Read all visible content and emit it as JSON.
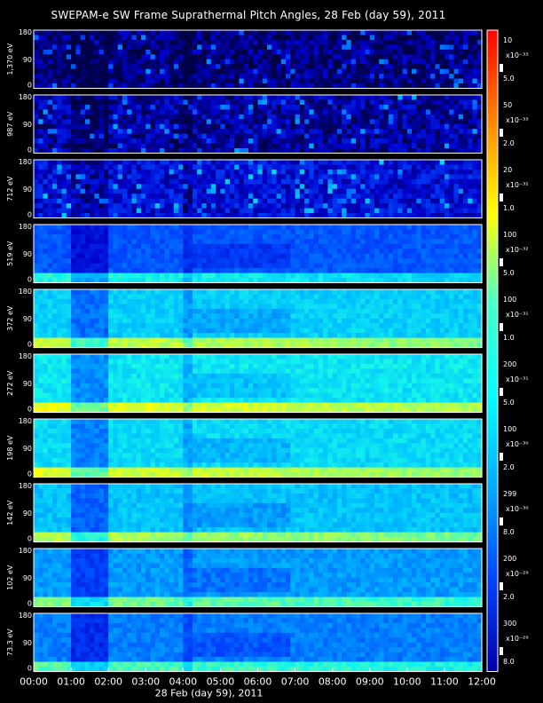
{
  "title": "SWEPAM-e SW Frame Suprathermal Pitch Angles, 28 Feb (day  59), 2011",
  "chart_data": {
    "type": "heatmap",
    "title": "SWEPAM-e SW Frame Suprathermal Pitch Angles, 28 Feb (day  59), 2011",
    "xlabel": "28 Feb (day  59), 2011",
    "x_ticks": [
      "00:00",
      "01:00",
      "02:00",
      "03:00",
      "04:00",
      "05:00",
      "06:00",
      "07:00",
      "08:00",
      "09:00",
      "10:00",
      "11:00",
      "12:00"
    ],
    "y_ticks": [
      "0",
      "90",
      "180"
    ],
    "ylim": [
      0,
      180
    ],
    "colors": {
      "background": "#000000",
      "colorbar": [
        "#ff0000",
        "#ff8800",
        "#ffff00",
        "#44ffcc",
        "#00ffff",
        "#00aaff",
        "#0044ff",
        "#0000aa"
      ]
    },
    "panels": [
      {
        "label": "1,370 eV",
        "level": 0.05,
        "cb_labels": [
          "10",
          "x10⁻³³",
          "5.0"
        ]
      },
      {
        "label": "987 eV",
        "level": 0.09,
        "cb_labels": [
          "50",
          "x10⁻³³",
          "2.0"
        ]
      },
      {
        "label": "712 eV",
        "level": 0.16,
        "cb_labels": [
          "20",
          "x10⁻³²",
          "1.0"
        ]
      },
      {
        "label": "519 eV",
        "level": 0.3,
        "cb_labels": [
          "100",
          "x10⁻³²",
          "5.0"
        ]
      },
      {
        "label": "372 eV",
        "level": 0.48,
        "cb_labels": [
          "100",
          "x10⁻³¹",
          "1.0"
        ]
      },
      {
        "label": "272 eV",
        "level": 0.52,
        "cb_labels": [
          "200",
          "x10⁻³¹",
          "5.0"
        ]
      },
      {
        "label": "198 eV",
        "level": 0.5,
        "cb_labels": [
          "100",
          "x10⁻³⁰",
          "2.0"
        ]
      },
      {
        "label": "142 eV",
        "level": 0.46,
        "cb_labels": [
          "299",
          "x10⁻³⁰",
          "8.0"
        ]
      },
      {
        "label": "102 eV",
        "level": 0.4,
        "cb_labels": [
          "200",
          "x10⁻²⁹",
          "2.0"
        ]
      },
      {
        "label": "73.3 eV",
        "level": 0.36,
        "cb_labels": [
          "300",
          "x10⁻²⁹",
          "8.0"
        ]
      }
    ]
  }
}
